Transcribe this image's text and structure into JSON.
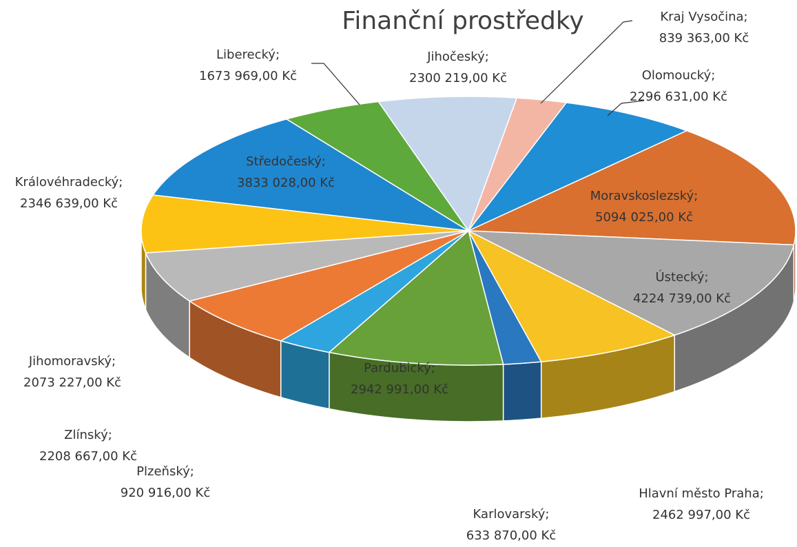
{
  "chart_data": {
    "type": "pie3d",
    "title": "Finanční prostředky",
    "categories": [
      "Kraj Vysočina",
      "Olomoucký",
      "Moravskoslezský",
      "Ústecký",
      "Hlavní město Praha",
      "Karlovarský",
      "Pardubický",
      "Plzeňský",
      "Zlínský",
      "Jihomoravský",
      "Královéhradecký",
      "Středočeský",
      "Liberecký",
      "Jihočeský"
    ],
    "values": [
      839363,
      2296631,
      5094025,
      4224739,
      2462997,
      633870,
      2942991,
      920916,
      2208667,
      2073227,
      2346639,
      3833028,
      1673969,
      2300219
    ],
    "value_labels": [
      "839 363,00 Kč",
      "2296 631,00 Kč",
      "5094 025,00 Kč",
      "4224 739,00 Kč",
      "2462 997,00 Kč",
      "633 870,00 Kč",
      "2942 991,00 Kč",
      "920 916,00 Kč",
      "2208 667,00 Kč",
      "2073 227,00 Kč",
      "2346 639,00 Kč",
      "3833 028,00 Kč",
      "1673 969,00 Kč",
      "2300 219,00 Kč"
    ],
    "label_separator": ";",
    "colors": [
      "#f4b6a4",
      "#1f8ed4",
      "#d9702f",
      "#a8a8a8",
      "#f6c224",
      "#2a78bf",
      "#68a03a",
      "#2ea5de",
      "#ec7a35",
      "#b9b9b9",
      "#fdc314",
      "#1f87d0",
      "#5ea93b",
      "#c5d6eb"
    ]
  }
}
